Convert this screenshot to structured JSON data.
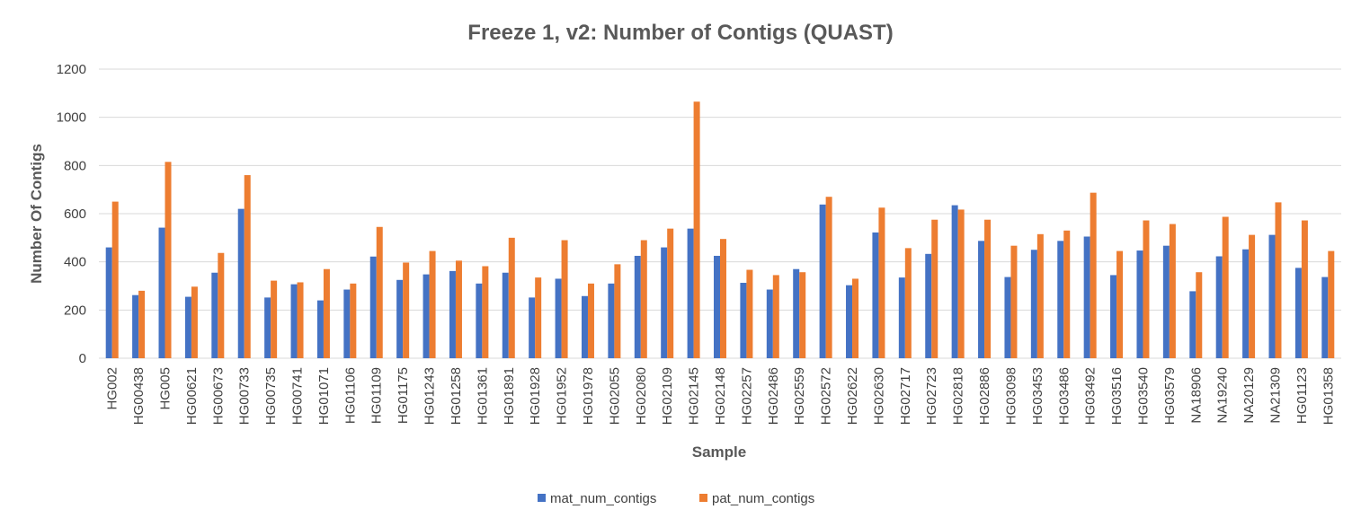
{
  "chart_data": {
    "type": "bar",
    "title": "Freeze 1, v2: Number of Contigs (QUAST)",
    "xlabel": "Sample",
    "ylabel": "Number Of Contigs",
    "ylim": [
      0,
      1200
    ],
    "yticks": [
      0,
      200,
      400,
      600,
      800,
      1000,
      1200
    ],
    "grid": true,
    "legend_position": "bottom",
    "categories": [
      "HG002",
      "HG00438",
      "HG005",
      "HG00621",
      "HG00673",
      "HG00733",
      "HG00735",
      "HG00741",
      "HG01071",
      "HG01106",
      "HG01109",
      "HG01175",
      "HG01243",
      "HG01258",
      "HG01361",
      "HG01891",
      "HG01928",
      "HG01952",
      "HG01978",
      "HG02055",
      "HG02080",
      "HG02109",
      "HG02145",
      "HG02148",
      "HG02257",
      "HG02486",
      "HG02559",
      "HG02572",
      "HG02622",
      "HG02630",
      "HG02717",
      "HG02723",
      "HG02818",
      "HG02886",
      "HG03098",
      "HG03453",
      "HG03486",
      "HG03492",
      "HG03516",
      "HG03540",
      "HG03579",
      "NA18906",
      "NA19240",
      "NA20129",
      "NA21309",
      "HG01123",
      "HG01358"
    ],
    "series": [
      {
        "name": "mat_num_contigs",
        "color": "#4472c4",
        "values": [
          460,
          262,
          542,
          255,
          355,
          620,
          252,
          307,
          240,
          285,
          422,
          325,
          348,
          362,
          310,
          355,
          252,
          330,
          258,
          310,
          425,
          460,
          538,
          425,
          313,
          285,
          370,
          638,
          303,
          522,
          335,
          433,
          635,
          487,
          337,
          450,
          487,
          505,
          345,
          447,
          467,
          278,
          423,
          452,
          512,
          375,
          337
        ]
      },
      {
        "name": "pat_num_contigs",
        "color": "#ed7d31",
        "values": [
          650,
          280,
          815,
          297,
          437,
          760,
          322,
          315,
          370,
          310,
          545,
          397,
          445,
          405,
          382,
          500,
          335,
          490,
          310,
          390,
          490,
          538,
          1065,
          495,
          367,
          345,
          357,
          670,
          330,
          625,
          457,
          575,
          617,
          575,
          467,
          515,
          530,
          687,
          445,
          572,
          557,
          357,
          587,
          512,
          647,
          572,
          445
        ]
      }
    ]
  }
}
